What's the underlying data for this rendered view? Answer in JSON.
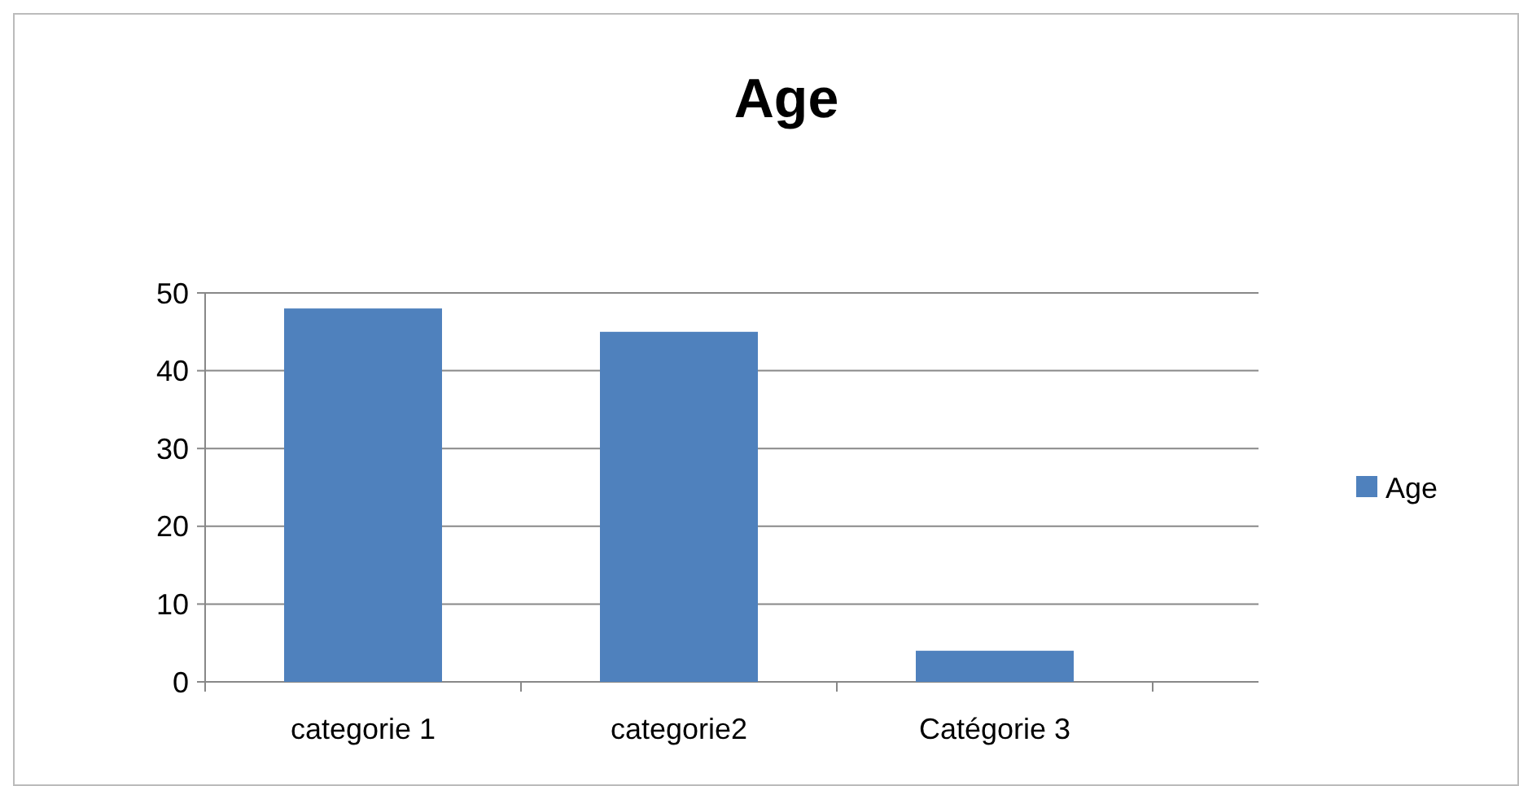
{
  "chart_data": {
    "type": "bar",
    "title": "Age",
    "categories": [
      "categorie 1",
      "categorie2",
      "Catégorie 3"
    ],
    "series": [
      {
        "name": "Age",
        "color": "#4f81bd",
        "values": [
          48,
          45,
          4
        ]
      }
    ],
    "ylim": [
      0,
      50
    ],
    "yticks": [
      0,
      10,
      20,
      30,
      40,
      50
    ],
    "grid": "y",
    "legend": "right"
  }
}
